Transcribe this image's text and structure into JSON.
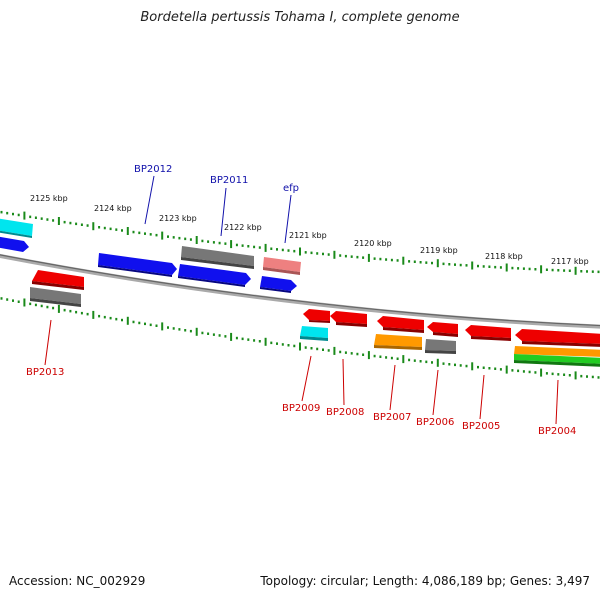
{
  "header": {
    "title": "Bordetella pertussis Tohama I, complete genome"
  },
  "footer": {
    "accession": "Accession: NC_002929",
    "summary": "Topology: circular; Length: 4,086,189 bp; Genes: 3,497"
  },
  "colors": {
    "backbone": "#8a8a8a",
    "tick": "#1a8a1a",
    "label_top": "#1010aa",
    "label_bottom": "#cc0000",
    "blue": "#1010ee",
    "red": "#ee0000",
    "gray": "#666666",
    "cyan": "#00e5ee",
    "pink": "#ee8080",
    "orange": "#ff9900",
    "green": "#22cc22"
  },
  "ruler_labels": [
    "2125 kbp",
    "2124 kbp",
    "2123 kbp",
    "2122 kbp",
    "2121 kbp",
    "2120 kbp",
    "2119 kbp",
    "2118 kbp",
    "2117 kbp"
  ],
  "gene_labels_top": [
    "BP2012",
    "BP2011",
    "efp"
  ],
  "gene_labels_bottom": [
    "BP2013",
    "BP2009",
    "BP2008",
    "BP2007",
    "BP2006",
    "BP2005",
    "BP2004"
  ],
  "features": [
    {
      "name": "feature-cyan-left",
      "color": "cyan"
    },
    {
      "name": "feature-blue-left",
      "color": "blue"
    },
    {
      "name": "feature-red-bp2013",
      "color": "red"
    },
    {
      "name": "feature-gray-bp2013",
      "color": "gray"
    },
    {
      "name": "feature-blue-bp2012",
      "color": "blue"
    },
    {
      "name": "feature-gray-bp2011",
      "color": "gray"
    },
    {
      "name": "feature-blue-bp2011",
      "color": "blue"
    },
    {
      "name": "feature-pink-efp",
      "color": "pink"
    },
    {
      "name": "feature-blue-efp",
      "color": "blue"
    },
    {
      "name": "feature-red-bp2009",
      "color": "red"
    },
    {
      "name": "feature-cyan-bp2009",
      "color": "cyan"
    },
    {
      "name": "feature-red-bp2008",
      "color": "red"
    },
    {
      "name": "feature-red-bp2007",
      "color": "red"
    },
    {
      "name": "feature-orange-bp2007",
      "color": "orange"
    },
    {
      "name": "feature-red-bp2006",
      "color": "red"
    },
    {
      "name": "feature-gray-bp2006",
      "color": "gray"
    },
    {
      "name": "feature-red-bp2005",
      "color": "red"
    },
    {
      "name": "feature-red-bp2004",
      "color": "red"
    },
    {
      "name": "feature-orange-bp2004",
      "color": "orange"
    },
    {
      "name": "feature-green-bp2004",
      "color": "green"
    }
  ]
}
